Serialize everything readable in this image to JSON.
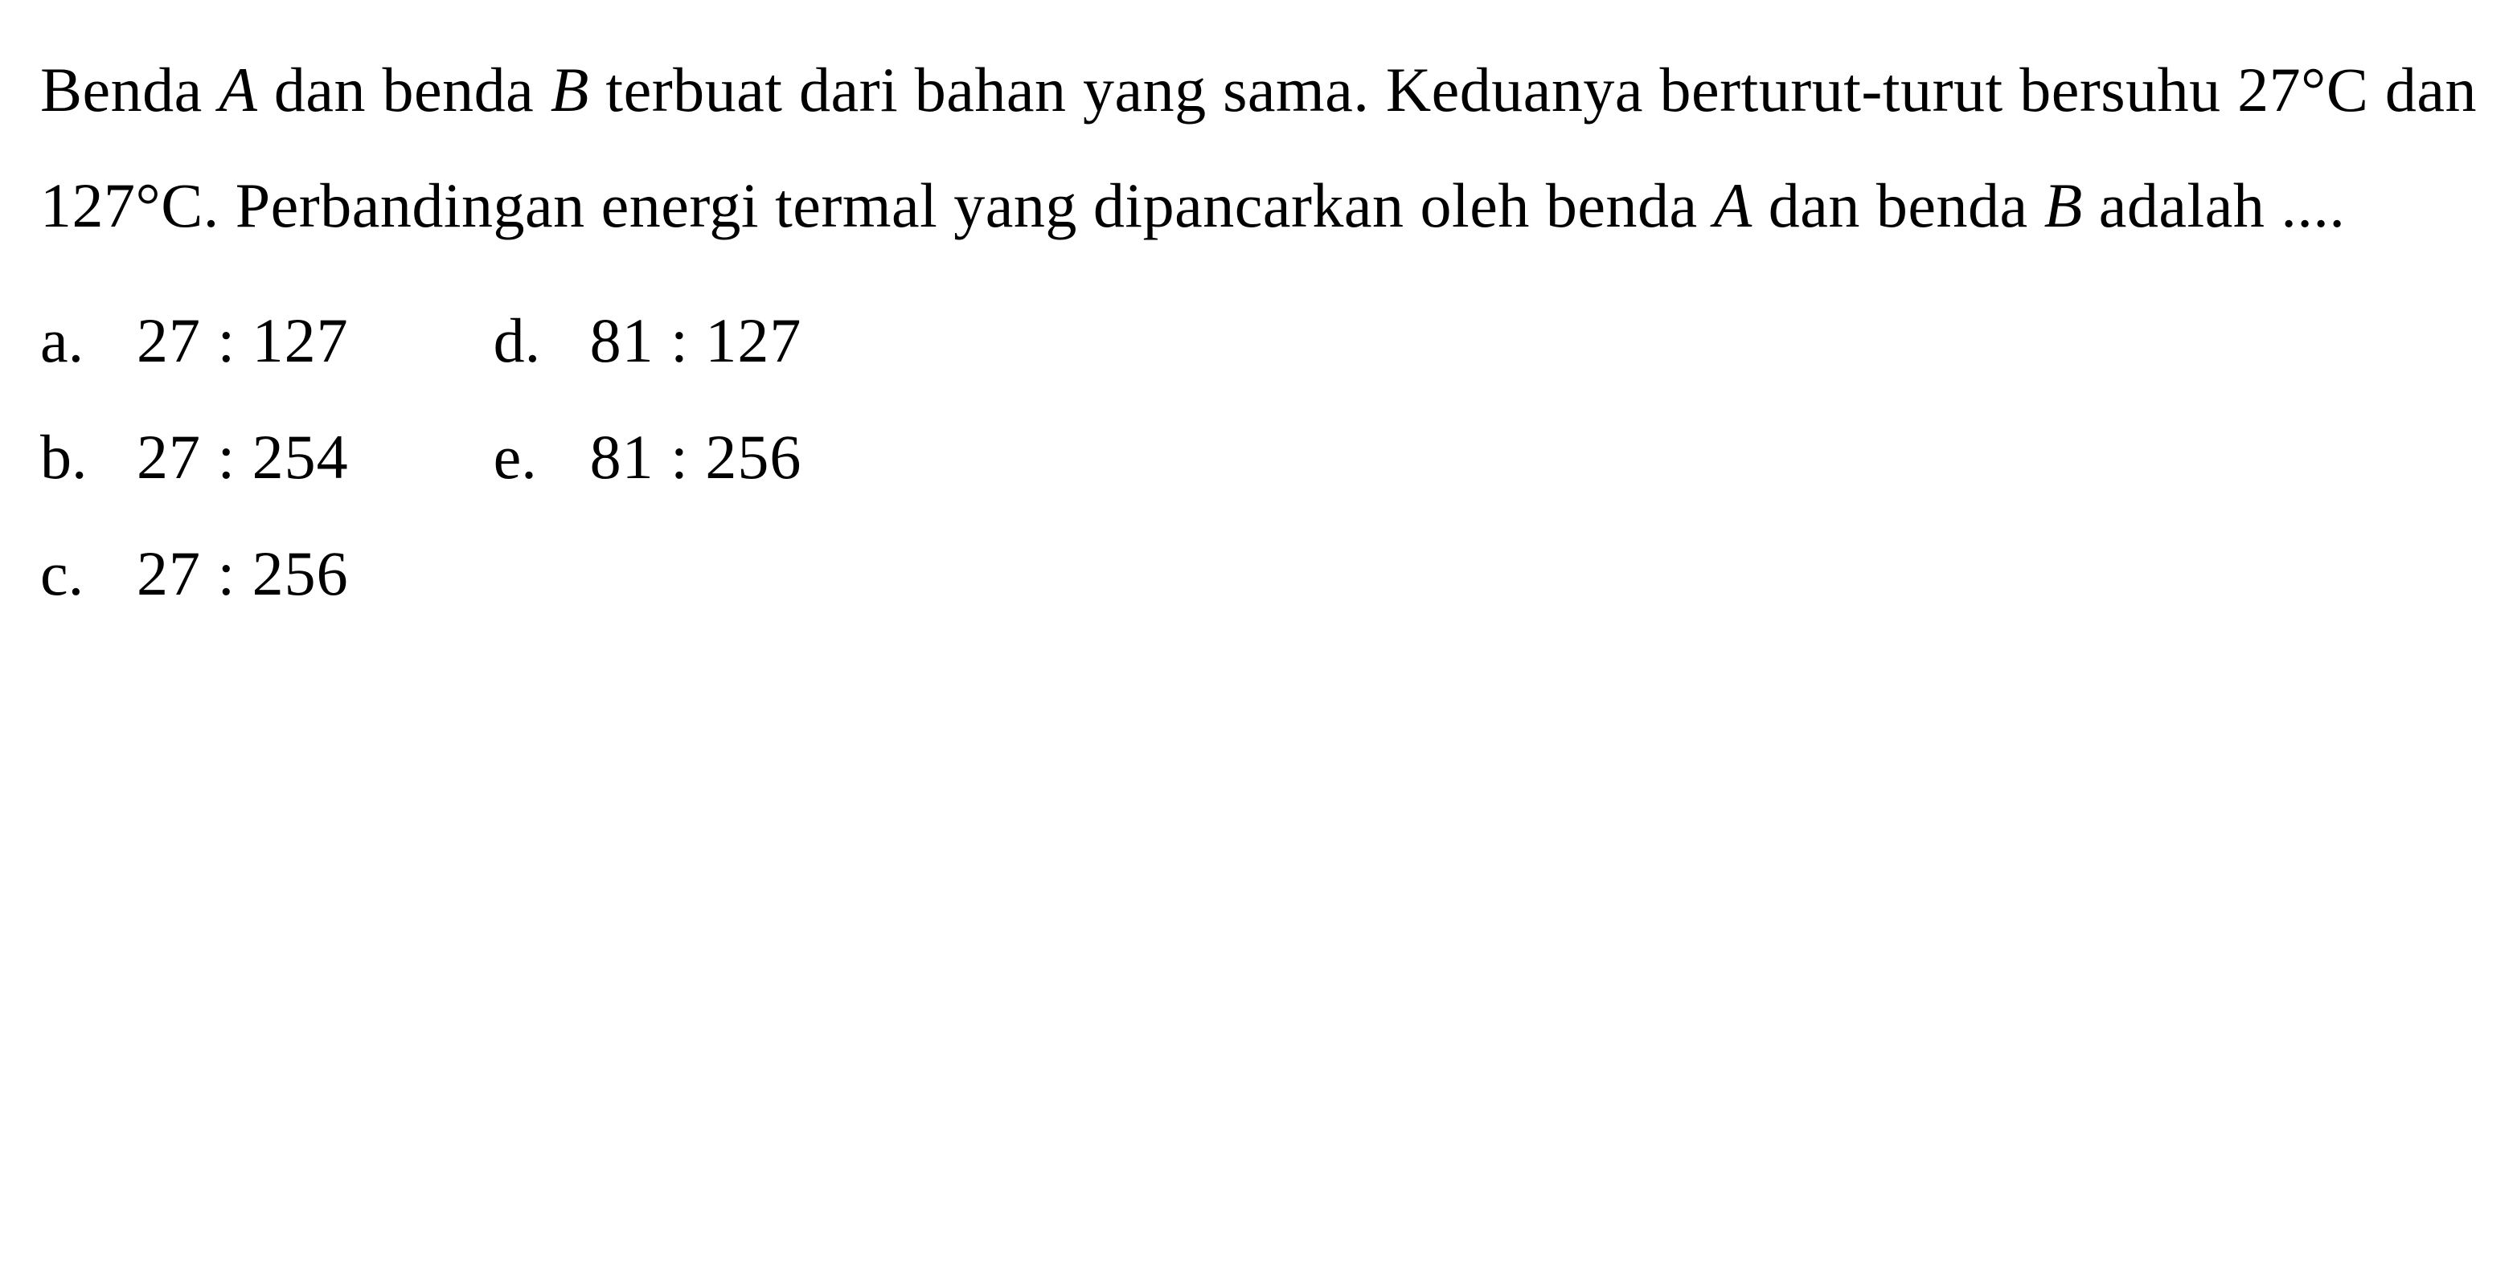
{
  "question": {
    "line1_part1": "Benda ",
    "line1_italic1": "A",
    "line1_part2": " dan benda ",
    "line1_italic2": "B",
    "line1_part3": " terbuat dari bahan yang sama. Keduanya berturut-turut bersuhu 27°C dan 127°C. Perbandingan energi termal yang dipancarkan oleh benda ",
    "line1_italic3": "A",
    "line1_part4": " dan benda ",
    "line1_italic4": "B",
    "line1_part5": " adalah ...."
  },
  "options": {
    "left": [
      {
        "letter": "a.",
        "value": "27 : 127"
      },
      {
        "letter": "b.",
        "value": "27 : 254"
      },
      {
        "letter": "c.",
        "value": "27 : 256"
      }
    ],
    "right": [
      {
        "letter": "d.",
        "value": "81 : 127"
      },
      {
        "letter": "e.",
        "value": "81 : 256"
      }
    ]
  },
  "styling": {
    "background_color": "#ffffff",
    "text_color": "#000000",
    "font_family": "Times New Roman",
    "question_fontsize": 78,
    "option_fontsize": 78,
    "line_height": 1.85
  }
}
